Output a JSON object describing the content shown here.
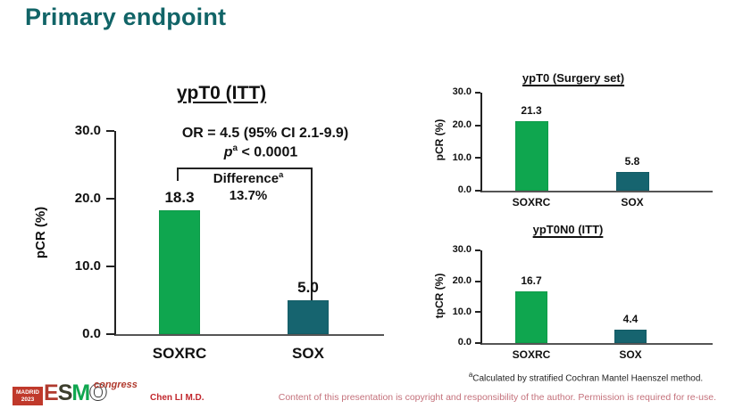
{
  "slide": {
    "title": "Primary endpoint",
    "presenter": "Chen LI M.D.",
    "disclaimer": "Content of this presentation is copyright and responsibility of the author. Permission is required for re-use.",
    "footnote": {
      "sup": "a",
      "text": "Calculated by stratified Cochran Mantel Haenszel method."
    }
  },
  "logo": {
    "location": "MADRID",
    "year": "2023",
    "letters": [
      "E",
      "S",
      "M",
      "O"
    ],
    "congress": "congress"
  },
  "colors": {
    "title_teal": "#116467",
    "bar_green": "#0fa64f",
    "bar_teal": "#16646f",
    "accent_red": "#c1272d",
    "disclaimer_red": "#c4717b"
  },
  "chart_data": [
    {
      "type": "bar",
      "title": "ypT0 (ITT)",
      "categories": [
        "SOXRC",
        "SOX"
      ],
      "values": [
        18.3,
        5.0
      ],
      "value_labels": [
        "18.3",
        "5.0"
      ],
      "bar_colors": [
        "#0fa64f",
        "#16646f"
      ],
      "ylabel": "pCR (%)",
      "ylim": [
        0,
        30
      ],
      "yticks": [
        "0.0",
        "10.0",
        "20.0",
        "30.0"
      ],
      "annotations": {
        "or_line": "OR = 4.5 (95% CI 2.1-9.9)",
        "p_pre": "p",
        "p_sup": "a",
        "p_post": " < 0.0001",
        "difference_label": "Difference",
        "difference_sup": "a",
        "difference_value": "13.7%"
      }
    },
    {
      "type": "bar",
      "title": "ypT0 (Surgery set)",
      "categories": [
        "SOXRC",
        "SOX"
      ],
      "values": [
        21.3,
        5.8
      ],
      "value_labels": [
        "21.3",
        "5.8"
      ],
      "bar_colors": [
        "#0fa64f",
        "#16646f"
      ],
      "ylabel": "pCR (%)",
      "ylim": [
        0,
        30
      ],
      "yticks": [
        "0.0",
        "10.0",
        "20.0",
        "30.0"
      ]
    },
    {
      "type": "bar",
      "title": "ypT0N0 (ITT)",
      "categories": [
        "SOXRC",
        "SOX"
      ],
      "values": [
        16.7,
        4.4
      ],
      "value_labels": [
        "16.7",
        "4.4"
      ],
      "bar_colors": [
        "#0fa64f",
        "#16646f"
      ],
      "ylabel": "tpCR (%)",
      "ylim": [
        0,
        30
      ],
      "yticks": [
        "0.0",
        "10.0",
        "20.0",
        "30.0"
      ]
    }
  ]
}
